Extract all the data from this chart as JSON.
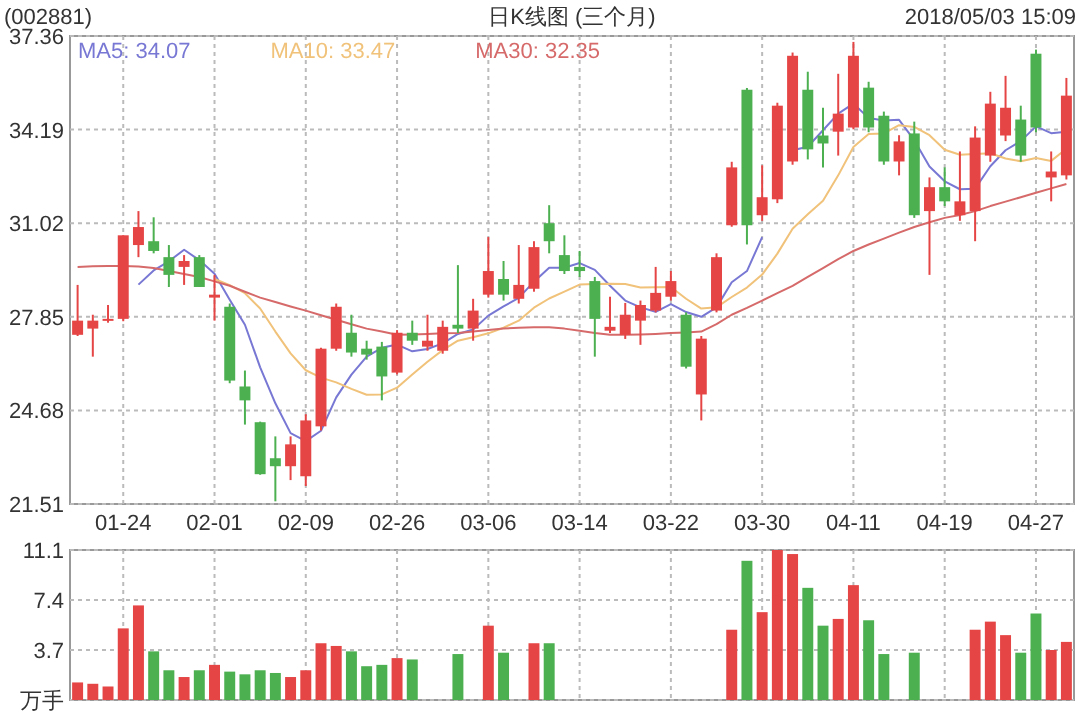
{
  "chart_data": [
    {
      "type": "candlestick",
      "title": "(002881)",
      "subtitle": "日K线图 (三个月)",
      "annotations": [
        "2018/05/03 15:09"
      ],
      "categories": [
        null,
        null,
        null,
        "01-24",
        null,
        null,
        null,
        null,
        null,
        "02-01",
        null,
        null,
        null,
        null,
        null,
        "02-09",
        null,
        null,
        null,
        null,
        null,
        "02-26",
        null,
        null,
        null,
        null,
        null,
        "03-06",
        null,
        null,
        null,
        null,
        null,
        "03-14",
        null,
        null,
        null,
        null,
        null,
        "03-22",
        null,
        null,
        null,
        null,
        null,
        "03-30",
        null,
        null,
        null,
        null,
        null,
        "04-11",
        null,
        null,
        null,
        null,
        null,
        "04-19",
        null,
        null,
        null,
        null,
        null,
        "04-27",
        null,
        null
      ],
      "ohlc": [
        [
          27.24,
          28.93,
          27.2,
          27.72
        ],
        [
          27.45,
          27.92,
          26.5,
          27.72
        ],
        [
          27.72,
          28.25,
          27.65,
          27.78
        ],
        [
          27.78,
          30.61,
          27.7,
          30.61
        ],
        [
          30.28,
          31.43,
          29.87,
          30.89
        ],
        [
          30.41,
          31.22,
          30.0,
          30.08
        ],
        [
          29.87,
          30.28,
          28.86,
          29.27
        ],
        [
          29.54,
          29.94,
          28.93,
          29.74
        ],
        [
          29.87,
          29.94,
          28.86,
          28.86
        ],
        [
          28.5,
          29.27,
          27.72,
          28.6
        ],
        [
          28.19,
          28.3,
          25.6,
          25.69
        ],
        [
          25.49,
          26.03,
          24.2,
          25.02
        ],
        [
          24.28,
          24.3,
          22.5,
          22.52
        ],
        [
          23.06,
          23.8,
          21.6,
          22.79
        ],
        [
          22.79,
          23.8,
          22.32,
          23.53
        ],
        [
          22.45,
          24.55,
          22.12,
          24.34
        ],
        [
          24.14,
          26.8,
          24.0,
          26.77
        ],
        [
          26.77,
          28.3,
          26.7,
          28.19
        ],
        [
          27.31,
          27.92,
          26.5,
          26.64
        ],
        [
          26.77,
          27.04,
          26.4,
          26.57
        ],
        [
          26.84,
          27.0,
          25.02,
          25.83
        ],
        [
          25.96,
          27.4,
          25.9,
          27.31
        ],
        [
          27.31,
          27.72,
          26.9,
          27.04
        ],
        [
          26.84,
          27.92,
          26.7,
          27.04
        ],
        [
          26.7,
          27.72,
          26.6,
          27.51
        ],
        [
          27.58,
          29.6,
          27.3,
          27.45
        ],
        [
          27.45,
          28.46,
          27.04,
          28.06
        ],
        [
          28.6,
          30.55,
          28.5,
          29.4
        ],
        [
          29.13,
          29.74,
          28.4,
          28.6
        ],
        [
          28.46,
          30.28,
          28.3,
          28.93
        ],
        [
          28.8,
          30.41,
          28.7,
          30.21
        ],
        [
          31.02,
          31.63,
          30.0,
          30.41
        ],
        [
          29.94,
          30.61,
          29.3,
          29.4
        ],
        [
          29.54,
          30.08,
          29.2,
          29.4
        ],
        [
          29.06,
          29.2,
          26.5,
          27.78
        ],
        [
          27.38,
          28.53,
          27.3,
          27.51
        ],
        [
          27.24,
          28.32,
          27.1,
          27.92
        ],
        [
          27.72,
          28.4,
          26.9,
          28.25
        ],
        [
          28.06,
          29.54,
          28.0,
          28.66
        ],
        [
          28.53,
          29.4,
          28.4,
          29.06
        ],
        [
          27.92,
          28.0,
          26.1,
          26.16
        ],
        [
          25.22,
          27.2,
          24.34,
          27.11
        ],
        [
          28.06,
          30.0,
          28.0,
          29.87
        ],
        [
          30.95,
          33.1,
          30.9,
          32.91
        ],
        [
          35.54,
          35.6,
          30.3,
          30.95
        ],
        [
          31.29,
          32.98,
          31.1,
          31.9
        ],
        [
          31.83,
          35.1,
          31.7,
          35.0
        ],
        [
          33.11,
          36.8,
          33.0,
          36.69
        ],
        [
          35.54,
          36.15,
          33.18,
          33.52
        ],
        [
          33.99,
          34.93,
          32.91,
          33.72
        ],
        [
          34.12,
          36.08,
          33.31,
          34.73
        ],
        [
          34.26,
          37.16,
          34.2,
          36.69
        ],
        [
          35.61,
          35.81,
          34.1,
          34.26
        ],
        [
          34.66,
          34.8,
          33.0,
          33.11
        ],
        [
          33.11,
          34.0,
          32.64,
          33.79
        ],
        [
          34.06,
          34.46,
          31.2,
          31.29
        ],
        [
          31.43,
          32.57,
          29.27,
          32.24
        ],
        [
          32.24,
          32.91,
          31.6,
          31.76
        ],
        [
          31.29,
          33.45,
          31.1,
          31.76
        ],
        [
          31.43,
          34.3,
          30.41,
          33.92
        ],
        [
          33.31,
          35.47,
          33.1,
          35.07
        ],
        [
          33.99,
          36.01,
          33.8,
          34.93
        ],
        [
          34.53,
          35.0,
          33.1,
          33.31
        ],
        [
          36.76,
          36.9,
          34.1,
          34.26
        ],
        [
          32.57,
          33.45,
          31.76,
          32.77
        ],
        [
          32.64,
          35.94,
          32.5,
          35.34
        ]
      ],
      "colors": [
        "#e64545",
        "#e64545",
        "#e64545",
        "#e64545",
        "#e64545",
        "#4cb050",
        "#4cb050",
        "#e64545",
        "#4cb050",
        "#e64545",
        "#4cb050",
        "#4cb050",
        "#4cb050",
        "#4cb050",
        "#e64545",
        "#e64545",
        "#e64545",
        "#e64545",
        "#4cb050",
        "#4cb050",
        "#4cb050",
        "#e64545",
        "#4cb050",
        "#e64545",
        "#e64545",
        "#4cb050",
        "#e64545",
        "#e64545",
        "#4cb050",
        "#e64545",
        "#e64545",
        "#4cb050",
        "#4cb050",
        "#4cb050",
        "#4cb050",
        "#e64545",
        "#e64545",
        "#e64545",
        "#e64545",
        "#e64545",
        "#4cb050",
        "#e64545",
        "#e64545",
        "#e64545",
        "#4cb050",
        "#e64545",
        "#e64545",
        "#e64545",
        "#4cb050",
        "#4cb050",
        "#e64545",
        "#e64545",
        "#4cb050",
        "#4cb050",
        "#e64545",
        "#4cb050",
        "#e64545",
        "#4cb050",
        "#e64545",
        "#e64545",
        "#e64545",
        "#e64545",
        "#4cb050",
        "#4cb050",
        "#e64545",
        "#e64545"
      ],
      "series": [
        {
          "type": "line",
          "name": "MA5: 34.07",
          "color": "#7878d4",
          "values": [
            null,
            null,
            null,
            null,
            28.94,
            29.42,
            29.73,
            30.12,
            29.77,
            29.31,
            28.43,
            27.58,
            26.14,
            24.92,
            23.91,
            23.64,
            23.99,
            25.12,
            25.89,
            26.5,
            26.8,
            26.91,
            26.68,
            26.76,
            26.95,
            27.27,
            27.42,
            27.89,
            28.2,
            28.49,
            29.04,
            29.51,
            29.51,
            29.67,
            29.44,
            28.9,
            28.4,
            28.17,
            28.02,
            28.28,
            28.01,
            27.85,
            28.17,
            29.02,
            29.4,
            30.55,
            null,
            33.49,
            33.61,
            34.17,
            34.73,
            35.07,
            34.58,
            34.5,
            34.52,
            33.83,
            32.94,
            32.44,
            32.17,
            32.19,
            32.95,
            33.49,
            33.8,
            34.3,
            34.07,
            34.12
          ]
        },
        {
          "type": "line",
          "name": "MA10: 33.47",
          "color": "#f0c27a",
          "values": [
            null,
            null,
            null,
            null,
            null,
            null,
            null,
            null,
            null,
            29.13,
            28.92,
            28.65,
            28.13,
            27.35,
            26.61,
            26.04,
            25.79,
            25.63,
            25.41,
            25.21,
            25.22,
            25.45,
            25.9,
            26.33,
            26.72,
            27.04,
            27.16,
            27.29,
            27.48,
            27.72,
            28.16,
            28.47,
            28.7,
            28.94,
            28.96,
            28.97,
            28.96,
            28.84,
            28.85,
            28.86,
            28.46,
            28.13,
            28.17,
            28.52,
            28.84,
            29.28,
            29.99,
            30.83,
            31.32,
            31.78,
            32.64,
            33.6,
            34.04,
            34.06,
            34.34,
            34.28,
            34.0,
            33.51,
            33.34,
            33.36,
            33.39,
            33.21,
            33.12,
            33.23,
            33.13,
            33.54
          ]
        },
        {
          "type": "line",
          "name": "MA30: 32.35",
          "color": "#d66a6a",
          "values": [
            29.54,
            29.56,
            29.57,
            29.57,
            29.55,
            29.5,
            29.4,
            29.3,
            29.2,
            29.05,
            28.9,
            28.7,
            28.5,
            28.35,
            28.2,
            28.06,
            27.9,
            27.75,
            27.6,
            27.45,
            27.35,
            27.24,
            27.25,
            27.27,
            27.29,
            27.3,
            27.35,
            27.4,
            27.45,
            27.48,
            27.5,
            27.5,
            27.45,
            27.38,
            27.3,
            27.24,
            27.24,
            27.25,
            27.27,
            27.3,
            27.32,
            27.35,
            27.6,
            27.92,
            28.15,
            28.4,
            28.65,
            28.9,
            29.2,
            29.5,
            29.8,
            30.08,
            30.3,
            30.5,
            30.7,
            30.89,
            31.05,
            31.2,
            31.3,
            31.43,
            31.6,
            31.75,
            31.9,
            32.05,
            32.2,
            32.35
          ]
        }
      ],
      "ylim": [
        21.51,
        37.36
      ],
      "yticks": [
        21.51,
        24.68,
        27.85,
        31.02,
        34.19,
        37.36
      ],
      "grid": true,
      "legend": "top left"
    },
    {
      "type": "bar",
      "categories": [
        null,
        null,
        null,
        null,
        null,
        null,
        null,
        null,
        null,
        null,
        null,
        null,
        null,
        null,
        null,
        null,
        null,
        null,
        null,
        null,
        null,
        null,
        null,
        null,
        null,
        null,
        null,
        null,
        null,
        null,
        null,
        null,
        null,
        null,
        null,
        null,
        null,
        null,
        null,
        null,
        null,
        null,
        null,
        null,
        null,
        null,
        null,
        null,
        null,
        null,
        null,
        null,
        null,
        null,
        null,
        null,
        null,
        null,
        null,
        null,
        null,
        null,
        null,
        null,
        null,
        null
      ],
      "values": [
        1.3,
        1.2,
        1.0,
        5.3,
        7.0,
        3.6,
        2.2,
        1.7,
        2.2,
        2.6,
        2.1,
        1.9,
        2.2,
        2.0,
        1.7,
        2.2,
        4.2,
        4.0,
        3.6,
        2.5,
        2.6,
        3.1,
        3.0,
        null,
        null,
        3.4,
        null,
        5.5,
        3.5,
        null,
        4.2,
        4.2,
        null,
        null,
        null,
        null,
        null,
        null,
        null,
        null,
        null,
        null,
        null,
        5.2,
        10.3,
        6.5,
        11.1,
        10.8,
        8.3,
        5.5,
        6.0,
        8.5,
        5.9,
        3.4,
        null,
        3.5,
        null,
        null,
        null,
        5.2,
        5.8,
        4.8,
        3.5,
        6.4,
        3.7,
        4.3
      ],
      "colors": [
        "#e64545",
        "#e64545",
        "#e64545",
        "#e64545",
        "#e64545",
        "#4cb050",
        "#4cb050",
        "#e64545",
        "#4cb050",
        "#e64545",
        "#4cb050",
        "#4cb050",
        "#4cb050",
        "#4cb050",
        "#e64545",
        "#e64545",
        "#e64545",
        "#e64545",
        "#4cb050",
        "#4cb050",
        "#4cb050",
        "#e64545",
        "#4cb050",
        null,
        null,
        "#4cb050",
        null,
        "#e64545",
        "#4cb050",
        null,
        "#e64545",
        "#4cb050",
        null,
        null,
        null,
        null,
        null,
        null,
        null,
        null,
        null,
        null,
        null,
        "#e64545",
        "#4cb050",
        "#e64545",
        "#e64545",
        "#e64545",
        "#4cb050",
        "#4cb050",
        "#e64545",
        "#e64545",
        "#4cb050",
        "#4cb050",
        null,
        "#4cb050",
        null,
        null,
        null,
        "#e64545",
        "#e64545",
        "#e64545",
        "#4cb050",
        "#4cb050",
        "#e64545",
        "#e64545"
      ],
      "ylim": [
        0,
        11.1
      ],
      "yticks": [
        {
          "value": 0,
          "label": "万手"
        },
        3.7,
        7.4,
        11.1
      ],
      "grid": true,
      "tick_labels": "y"
    }
  ]
}
